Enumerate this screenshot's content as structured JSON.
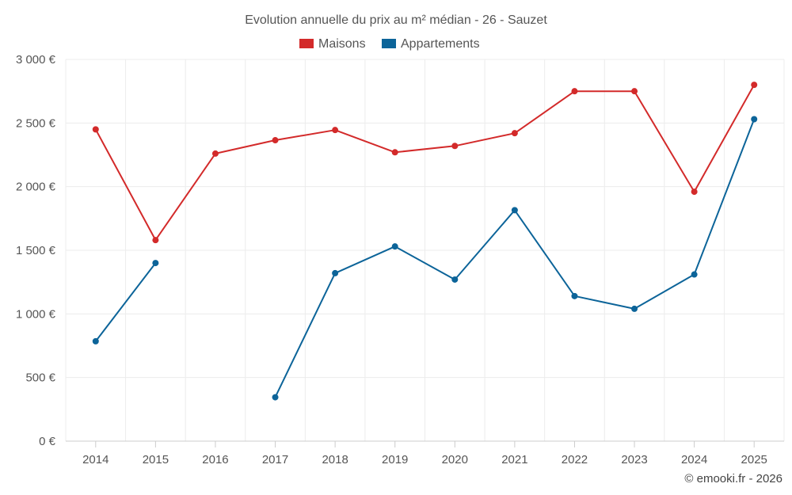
{
  "chart_data": {
    "type": "line",
    "title": "Evolution annuelle du prix au m² médian - 26 - Sauzet",
    "categories": [
      "2014",
      "2015",
      "2016",
      "2017",
      "2018",
      "2019",
      "2020",
      "2021",
      "2022",
      "2023",
      "2024",
      "2025"
    ],
    "series": [
      {
        "name": "Maisons",
        "color": "#d32a2a",
        "values": [
          2450,
          1580,
          2260,
          2365,
          2445,
          2270,
          2320,
          2420,
          2750,
          2750,
          1960,
          2800
        ]
      },
      {
        "name": "Appartements",
        "color": "#0c6499",
        "values": [
          785,
          1400,
          null,
          345,
          1320,
          1530,
          1270,
          1815,
          1140,
          1040,
          1310,
          2530
        ]
      }
    ],
    "ylim": [
      0,
      3000
    ],
    "yticks": [
      0,
      500,
      1000,
      1500,
      2000,
      2500,
      3000
    ],
    "ytick_labels": [
      "0 €",
      "500 €",
      "1 000 €",
      "1 500 €",
      "2 000 €",
      "2 500 €",
      "3 000 €"
    ],
    "xlabel": "",
    "ylabel": "",
    "grid": true,
    "legend_position": "top-center",
    "credit": "© emooki.fr - 2026"
  }
}
